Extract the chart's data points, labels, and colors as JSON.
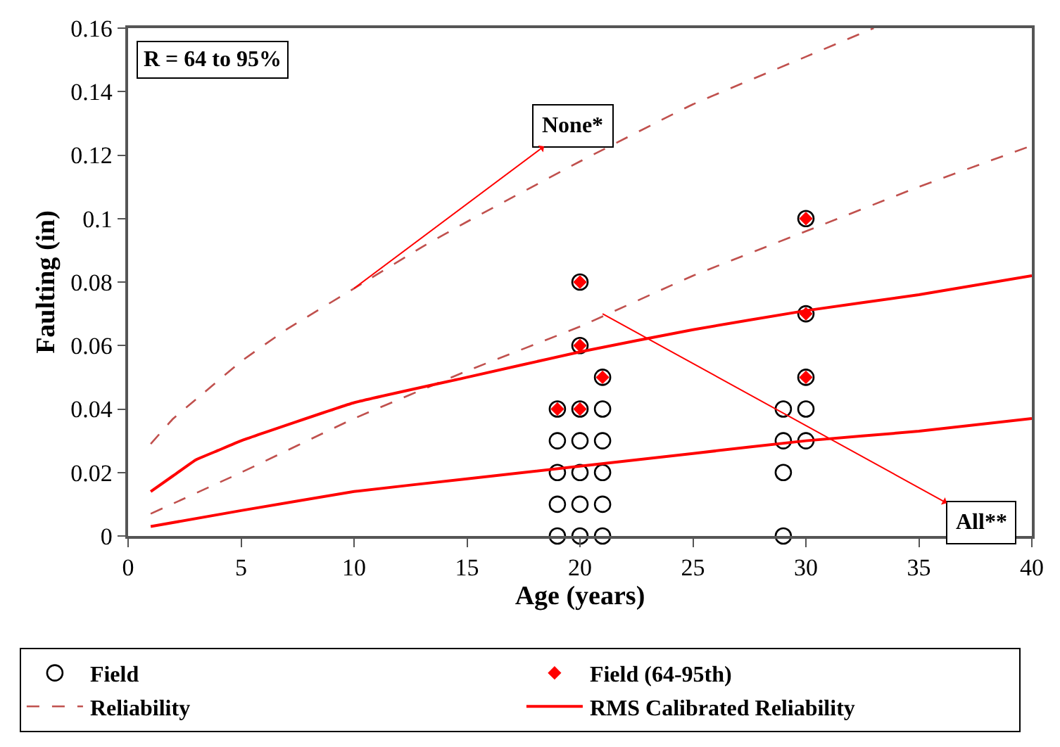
{
  "chart_data": {
    "type": "scatter",
    "xlabel": "Age (years)",
    "ylabel": "Faulting (in)",
    "xlim": [
      0,
      40
    ],
    "xticks": [
      0,
      5,
      10,
      15,
      20,
      25,
      30,
      35,
      40
    ],
    "ylim": [
      0,
      0.16
    ],
    "yticks": [
      0,
      0.02,
      0.04,
      0.06,
      0.08,
      0.1,
      0.12,
      0.14,
      0.16
    ],
    "legend": "bottom",
    "annotations": [
      "R = 64 to 95%",
      {
        "text": "None*",
        "x": 10,
        "y": 0.078
      },
      {
        "text": "All**",
        "x": 21,
        "y": 0.07
      }
    ],
    "series": [
      {
        "name": "Field",
        "marker": "circle",
        "color": "#000000",
        "x": [
          19,
          19,
          19,
          19,
          19,
          20,
          20,
          20,
          20,
          20,
          20,
          20,
          21,
          21,
          21,
          21,
          21,
          21,
          29,
          29,
          29,
          29,
          30,
          30,
          30,
          30,
          30
        ],
        "values": [
          0,
          0.01,
          0.02,
          0.03,
          0.04,
          0,
          0.01,
          0.02,
          0.03,
          0.04,
          0.06,
          0.08,
          0,
          0.01,
          0.02,
          0.03,
          0.04,
          0.05,
          0,
          0.02,
          0.03,
          0.04,
          0.03,
          0.04,
          0.05,
          0.07,
          0.1
        ]
      },
      {
        "name": "Field (64-95th)",
        "marker": "diamond",
        "color": "#ff0000",
        "x": [
          19,
          20,
          20,
          20,
          21,
          30,
          30,
          30
        ],
        "values": [
          0.04,
          0.04,
          0.06,
          0.08,
          0.05,
          0.05,
          0.07,
          0.1
        ]
      },
      {
        "name": "Reliability",
        "type": "line",
        "line_style": "dashed",
        "color": "#c0504d",
        "x": [
          1,
          2,
          3,
          5,
          7,
          10,
          13,
          15,
          20,
          25,
          30,
          33
        ],
        "values": [
          0.029,
          0.037,
          0.043,
          0.055,
          0.065,
          0.078,
          0.091,
          0.099,
          0.118,
          0.136,
          0.151,
          0.16
        ]
      },
      {
        "type": "line",
        "line_style": "dashed",
        "color": "#c0504d",
        "x": [
          1,
          5,
          10,
          15,
          20,
          25,
          30,
          35,
          40
        ],
        "values": [
          0.007,
          0.02,
          0.037,
          0.052,
          0.066,
          0.082,
          0.096,
          0.11,
          0.123
        ]
      },
      {
        "name": "RMS Calibrated Reliability",
        "type": "line",
        "line_style": "solid",
        "color": "#ff0000",
        "x": [
          1,
          2,
          3,
          4,
          5,
          10,
          15,
          20,
          25,
          30,
          35,
          40
        ],
        "values": [
          0.014,
          0.019,
          0.024,
          0.027,
          0.03,
          0.042,
          0.05,
          0.058,
          0.065,
          0.071,
          0.076,
          0.082
        ]
      },
      {
        "type": "line",
        "line_style": "solid",
        "color": "#ff0000",
        "x": [
          1,
          5,
          10,
          15,
          20,
          25,
          30,
          35,
          40
        ],
        "values": [
          0.003,
          0.008,
          0.014,
          0.018,
          0.022,
          0.026,
          0.03,
          0.033,
          0.037
        ]
      }
    ]
  }
}
